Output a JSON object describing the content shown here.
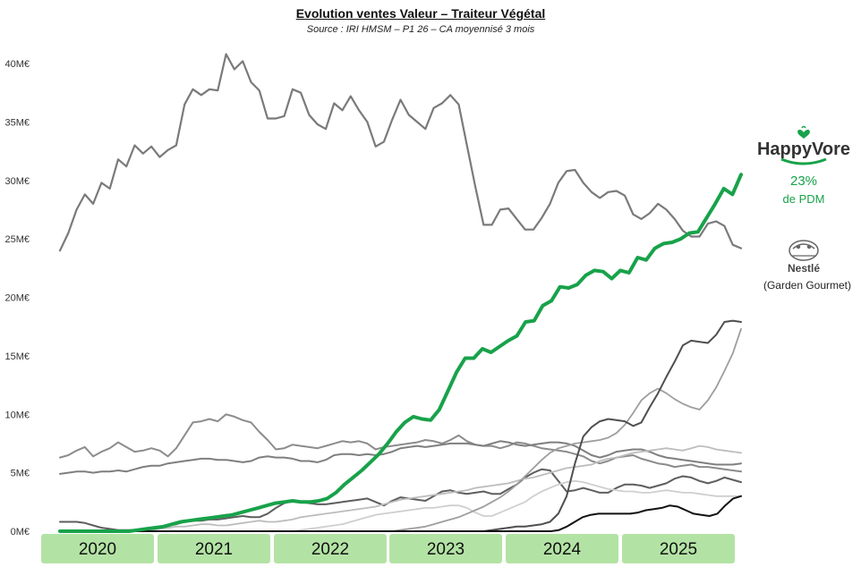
{
  "header": {
    "title": "Evolution ventes Valeur – Traiteur Végétal",
    "subtitle": "Source : IRI HMSM – P1 26 – CA moyennisé 3 mois"
  },
  "legend_brands": {
    "happyvore": {
      "logo_text": "HappyVore",
      "share": "23%",
      "share_label": "de PDM",
      "color": "#18a24a"
    },
    "nestle": {
      "logo_text": "Nestlé",
      "sub_label": "(Garden Gourmet)"
    }
  },
  "chart_data": {
    "type": "line",
    "title": "Evolution ventes Valeur – Traiteur Végétal",
    "xlabel": "",
    "ylabel": "",
    "y_ticks": [
      "0M€",
      "5M€",
      "10M€",
      "15M€",
      "20M€",
      "25M€",
      "30M€",
      "35M€",
      "40M€"
    ],
    "ylim": [
      0,
      40
    ],
    "year_labels": [
      "2020",
      "2021",
      "2022",
      "2023",
      "2024",
      "2025"
    ],
    "year_band_color": "#b3e3a4",
    "grid": false,
    "x_start": "2020-01",
    "x_end": "2026-01",
    "series": [
      {
        "color": "#7a7a7a",
        "width": 2.2,
        "values": [
          24,
          25.5,
          27.5,
          28.8,
          28,
          29.8,
          29.3,
          31.8,
          31.2,
          33,
          32.3,
          32.9,
          32,
          32.6,
          33,
          36.5,
          37.8,
          37.3,
          37.8,
          37.7,
          40.8,
          39.5,
          40.2,
          38.4,
          37.7,
          35.3,
          35.3,
          35.5,
          37.8,
          37.5,
          35.6,
          34.8,
          34.4,
          36.6,
          36,
          37.2,
          36,
          35,
          32.9,
          33.3,
          35.2,
          36.9,
          35.6,
          35,
          34.4,
          36.2,
          36.6,
          37.3,
          36.5,
          33,
          29.5,
          26.2,
          26.2,
          27.5,
          27.6,
          26.7,
          25.8,
          25.8,
          26.8,
          28,
          29.8,
          30.8,
          30.9,
          29.8,
          29,
          28.5,
          29,
          29.1,
          28.7,
          27.1,
          26.7,
          27.2,
          28,
          27.5,
          26.7,
          25.7,
          25.2,
          25.2,
          26.3,
          26.5,
          26.1,
          24.5,
          24.2
        ]
      },
      {
        "color": "#8c8c8c",
        "width": 2.0,
        "values": [
          6.3,
          6.5,
          6.9,
          7.2,
          6.4,
          6.8,
          7.1,
          7.6,
          7.2,
          6.8,
          6.9,
          7.1,
          6.9,
          6.4,
          7.1,
          8.2,
          9.3,
          9.4,
          9.6,
          9.4,
          10,
          9.8,
          9.5,
          9.3,
          8.5,
          7.8,
          7,
          7.1,
          7.4,
          7.3,
          7.2,
          7.1,
          7.3,
          7.5,
          7.7,
          7.6,
          7.7,
          7.5,
          7,
          7.2,
          7.3,
          7.4,
          7.5,
          7.6,
          7.8,
          7.7,
          7.5,
          7.8,
          8.2,
          7.7,
          7.4,
          7.3,
          7.3,
          7.1,
          7.3,
          7.6,
          7.5,
          7.3,
          7.1,
          7,
          6.9,
          6.8,
          6.6,
          6.4,
          6,
          5.8,
          6,
          6.3,
          6.4,
          6.5,
          6.2,
          6,
          5.8,
          5.7,
          5.5,
          5.6,
          5.7,
          5.5,
          5.5,
          5.4,
          5.3,
          5.2,
          5.1
        ]
      },
      {
        "color": "#7f7f7f",
        "width": 2.0,
        "values": [
          4.9,
          5,
          5.1,
          5.1,
          5,
          5.1,
          5.1,
          5.2,
          5.1,
          5.3,
          5.5,
          5.6,
          5.6,
          5.8,
          5.9,
          6,
          6.1,
          6.2,
          6.2,
          6.1,
          6.1,
          6,
          5.9,
          6,
          6.3,
          6.4,
          6.3,
          6.3,
          6.2,
          6,
          6,
          5.9,
          6.1,
          6.5,
          6.6,
          6.6,
          6.5,
          6.6,
          6.5,
          6.6,
          6.8,
          7.1,
          7.2,
          7.3,
          7.2,
          7.3,
          7.4,
          7.5,
          7.5,
          7.5,
          7.4,
          7.3,
          7.5,
          7.7,
          7.6,
          7.4,
          7.3,
          7.4,
          7.5,
          7.6,
          7.6,
          7.5,
          7.3,
          6.9,
          6.5,
          6.3,
          6.5,
          6.8,
          6.9,
          7,
          7,
          6.8,
          6.5,
          6.3,
          6.2,
          6.1,
          6,
          5.9,
          5.8,
          5.7,
          5.7,
          5.7,
          5.8
        ]
      },
      {
        "color": "#5e5e5e",
        "width": 2.0,
        "values": [
          0.8,
          0.8,
          0.8,
          0.7,
          0.5,
          0.3,
          0.2,
          0.1,
          0.1,
          0.1,
          0.2,
          0.3,
          0.4,
          0.5,
          0.6,
          0.8,
          0.9,
          0.9,
          1,
          1,
          1.1,
          1.2,
          1.3,
          1.2,
          1.2,
          1.5,
          2,
          2.4,
          2.6,
          2.5,
          2.4,
          2.3,
          2.3,
          2.4,
          2.5,
          2.6,
          2.7,
          2.8,
          2.5,
          2.2,
          2.6,
          2.9,
          2.8,
          2.7,
          2.6,
          3,
          3.4,
          3.5,
          3.3,
          3.2,
          3.3,
          3.4,
          3.2,
          3.2,
          3.6,
          4,
          4.6,
          5,
          5.3,
          5.2,
          4.3,
          3.4,
          3.5,
          3.7,
          3.5,
          3.3,
          3.3,
          3.7,
          4,
          4,
          3.9,
          3.7,
          3.9,
          4.1,
          4.5,
          4.7,
          4.6,
          4.3,
          4.1,
          4.3,
          4.6,
          4.4,
          4.2
        ]
      },
      {
        "color": "#bdbdbd",
        "width": 1.8,
        "values": [
          0,
          0,
          0,
          0,
          0,
          0,
          0,
          0,
          0,
          0,
          0,
          0.1,
          0.2,
          0.3,
          0.4,
          0.4,
          0.5,
          0.6,
          0.6,
          0.5,
          0.5,
          0.6,
          0.7,
          0.8,
          0.9,
          0.8,
          0.8,
          0.9,
          1,
          1.2,
          1.3,
          1.4,
          1.5,
          1.6,
          1.7,
          1.8,
          1.9,
          2,
          2.1,
          2.3,
          2.5,
          2.7,
          2.8,
          2.9,
          3,
          3.1,
          3.2,
          3.3,
          3.4,
          3.5,
          3.7,
          3.8,
          3.9,
          4,
          4.1,
          4.3,
          4.5,
          4.6,
          4.8,
          5,
          5.2,
          5.4,
          5.5,
          5.6,
          5.7,
          6,
          6.2,
          6.3,
          6.5,
          6.7,
          6.8,
          6.9,
          7,
          7.1,
          7,
          6.9,
          7.1,
          7.3,
          7.2,
          7,
          6.9,
          6.8,
          6.7
        ]
      },
      {
        "color": "#cfcfcf",
        "width": 1.8,
        "values": [
          0,
          0,
          0,
          0,
          0,
          0,
          0,
          0,
          0,
          0,
          0,
          0,
          0,
          0,
          0,
          0,
          0,
          0,
          0,
          0,
          0,
          0,
          0,
          0,
          0,
          0,
          0,
          0,
          0,
          0.1,
          0.2,
          0.3,
          0.4,
          0.5,
          0.6,
          0.8,
          1,
          1.2,
          1.4,
          1.5,
          1.6,
          1.7,
          1.8,
          1.9,
          2,
          2,
          2.1,
          2.2,
          2.2,
          2,
          1.6,
          1.3,
          1.3,
          1.6,
          1.9,
          2.2,
          2.5,
          3,
          3.4,
          3.7,
          4,
          4.2,
          4.3,
          4.2,
          4,
          3.8,
          3.6,
          3.5,
          3.4,
          3.4,
          3.3,
          3.3,
          3.4,
          3.5,
          3.4,
          3.3,
          3.3,
          3.2,
          3.1,
          3,
          3,
          3,
          3
        ]
      },
      {
        "color": "#9e9e9e",
        "width": 1.8,
        "values": [
          0,
          0,
          0,
          0,
          0,
          0,
          0,
          0,
          0,
          0,
          0,
          0,
          0,
          0,
          0,
          0,
          0,
          0,
          0,
          0,
          0,
          0,
          0,
          0,
          0,
          0,
          0,
          0,
          0,
          0,
          0,
          0,
          0,
          0,
          0,
          0,
          0,
          0,
          0,
          0,
          0,
          0.1,
          0.2,
          0.3,
          0.4,
          0.6,
          0.8,
          1,
          1.2,
          1.5,
          1.8,
          2.1,
          2.5,
          2.9,
          3.4,
          4,
          4.7,
          5.4,
          6.1,
          6.7,
          7.1,
          7.3,
          7.5,
          7.6,
          7.7,
          7.8,
          8,
          8.4,
          9.1,
          10.1,
          11.2,
          11.8,
          12.2,
          11.8,
          11.3,
          10.9,
          10.6,
          10.4,
          11.2,
          12.3,
          13.7,
          15.2,
          17.3
        ]
      },
      {
        "color": "#4f4f4f",
        "width": 2.0,
        "values": [
          0,
          0,
          0,
          0,
          0,
          0,
          0,
          0,
          0,
          0,
          0,
          0,
          0,
          0,
          0,
          0,
          0,
          0,
          0,
          0,
          0,
          0,
          0,
          0,
          0,
          0,
          0,
          0,
          0,
          0,
          0,
          0,
          0,
          0,
          0,
          0,
          0,
          0,
          0,
          0,
          0,
          0,
          0,
          0,
          0,
          0,
          0,
          0,
          0,
          0,
          0,
          0,
          0.1,
          0.2,
          0.3,
          0.4,
          0.4,
          0.5,
          0.6,
          0.8,
          1.5,
          3,
          5.8,
          8.1,
          8.9,
          9.4,
          9.6,
          9.5,
          9.4,
          9,
          9.3,
          10.6,
          11.8,
          13.2,
          14.5,
          15.9,
          16.3,
          16.2,
          16.1,
          16.8,
          17.9,
          18,
          17.9
        ]
      },
      {
        "color": "#111111",
        "width": 2.0,
        "values": [
          0,
          0,
          0,
          0,
          0,
          0,
          0,
          0,
          0,
          0,
          0,
          0,
          0,
          0,
          0,
          0,
          0,
          0,
          0,
          0,
          0,
          0,
          0,
          0,
          0,
          0,
          0,
          0,
          0,
          0,
          0,
          0,
          0,
          0,
          0,
          0,
          0,
          0,
          0,
          0,
          0,
          0,
          0,
          0,
          0,
          0,
          0,
          0,
          0,
          0,
          0,
          0,
          0,
          0,
          0,
          0,
          0,
          0,
          0,
          0,
          0,
          0,
          0,
          0.1,
          0.4,
          0.8,
          1.2,
          1.4,
          1.5,
          1.5,
          1.5,
          1.5,
          1.5,
          1.6,
          1.8,
          1.9,
          2,
          2.2,
          2.1,
          1.8,
          1.5,
          1.4,
          1.3,
          1.5,
          2.2,
          2.8,
          3
        ]
      },
      {
        "name": "HappyVore",
        "color": "#18a24a",
        "width": 4.0,
        "values": [
          0,
          0,
          0,
          0,
          0,
          0,
          0,
          0,
          0,
          0.1,
          0.2,
          0.3,
          0.4,
          0.6,
          0.8,
          0.9,
          1,
          1.1,
          1.2,
          1.3,
          1.4,
          1.6,
          1.8,
          2,
          2.2,
          2.4,
          2.5,
          2.6,
          2.5,
          2.5,
          2.6,
          2.8,
          3.3,
          4,
          4.6,
          5.2,
          5.9,
          6.6,
          7.5,
          8.5,
          9.3,
          9.8,
          9.6,
          9.5,
          10.4,
          12,
          13.6,
          14.8,
          14.8,
          15.6,
          15.3,
          15.8,
          16.3,
          16.7,
          17.9,
          18,
          19.3,
          19.7,
          20.9,
          20.8,
          21.1,
          21.9,
          22.3,
          22.2,
          21.6,
          22.3,
          22.1,
          23.4,
          23.2,
          24.2,
          24.6,
          24.7,
          25,
          25.5,
          25.6,
          26.8,
          28,
          29.3,
          28.8,
          30.5
        ]
      }
    ]
  }
}
